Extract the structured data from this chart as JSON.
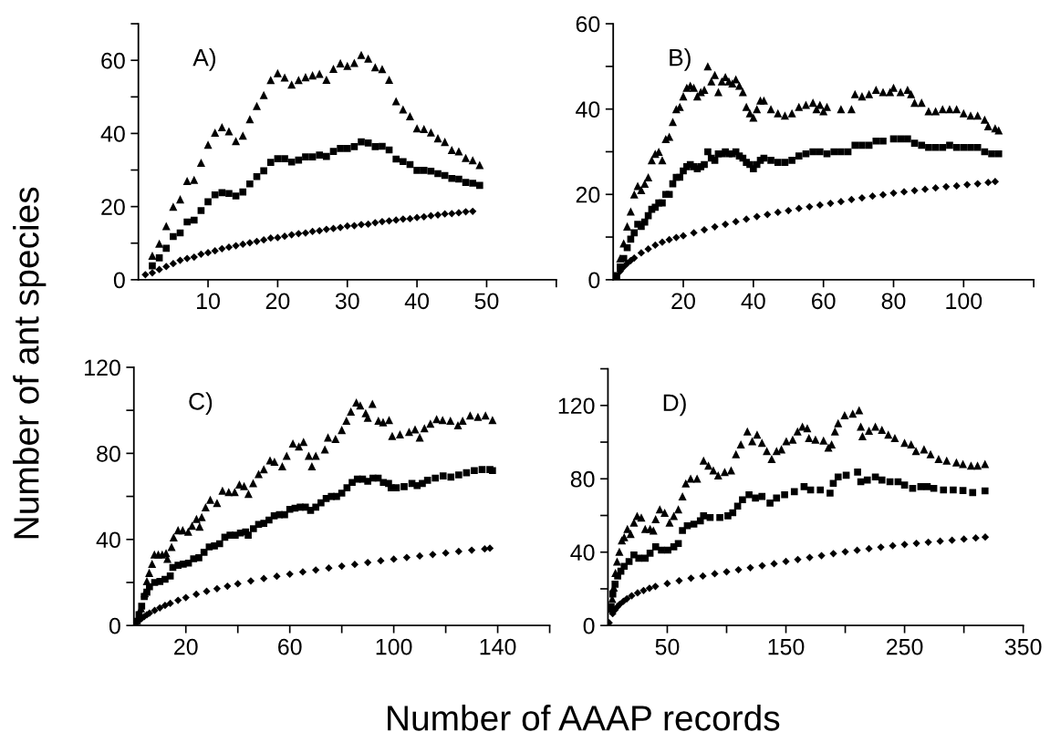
{
  "chart_data": [
    {
      "type": "scatter",
      "title": "A)",
      "ylabel": "Number of ant species",
      "xlim": [
        0,
        60
      ],
      "xticks": [
        10,
        20,
        30,
        40,
        50,
        {
          "value": 60,
          "label": null
        }
      ],
      "ylim": [
        0,
        70
      ],
      "yticks": [
        0,
        {
          "value": 10,
          "label": null
        },
        20,
        {
          "value": 30,
          "label": null
        },
        40,
        {
          "value": 50,
          "label": null
        },
        60,
        {
          "value": 70,
          "label": null
        }
      ],
      "series": [
        {
          "color": "#000000",
          "marker": "triangle",
          "x": [
            2,
            3,
            4,
            5,
            6,
            7,
            8,
            9,
            10,
            11,
            12,
            13,
            14,
            15,
            16,
            17,
            18,
            19,
            20,
            21,
            22,
            23,
            24,
            25,
            26,
            27,
            28,
            29,
            30,
            31,
            32,
            33,
            34,
            35,
            36,
            37,
            38,
            39,
            40,
            41,
            42,
            43,
            44,
            45,
            46,
            47,
            48,
            49
          ],
          "values": [
            6.6,
            9.9,
            14.7,
            20,
            22,
            27,
            27.3,
            32,
            36.9,
            40.2,
            41.7,
            40.6,
            37.9,
            39.4,
            43.9,
            47.5,
            50.5,
            54.6,
            56.5,
            55.3,
            53.4,
            54.6,
            55.4,
            55.9,
            56.3,
            54.7,
            57.7,
            59.2,
            58.5,
            59.3,
            61.5,
            60.5,
            58.1,
            57.6,
            54.7,
            48.8,
            46.6,
            44.7,
            41.4,
            41.2,
            40.3,
            38.7,
            37.7,
            35.5,
            35.1,
            33.3,
            32.7,
            31.4
          ]
        },
        {
          "color": "#000000",
          "marker": "square",
          "x": [
            2,
            3,
            4,
            5,
            6,
            7,
            8,
            9,
            10,
            11,
            12,
            13,
            14,
            15,
            16,
            17,
            18,
            19,
            20,
            21,
            22,
            23,
            24,
            25,
            26,
            27,
            28,
            29,
            30,
            31,
            32,
            33,
            34,
            35,
            36,
            37,
            38,
            39,
            40,
            41,
            42,
            43,
            44,
            45,
            46,
            47,
            48,
            49
          ],
          "values": [
            3.8,
            6,
            8.6,
            11.8,
            12.8,
            15.8,
            16.3,
            18.9,
            21.3,
            23.2,
            23.8,
            23.6,
            22.9,
            24,
            26.2,
            28.2,
            29.8,
            32.1,
            33.1,
            33.1,
            32.2,
            32.7,
            33.6,
            33.6,
            34.1,
            33.7,
            35.1,
            35.9,
            35.9,
            36.4,
            37.7,
            37.4,
            36.4,
            36.5,
            35.5,
            33,
            32.3,
            31.5,
            29.9,
            29.9,
            29.7,
            29,
            28.5,
            27.7,
            27.5,
            26.6,
            26.4,
            25.8
          ]
        },
        {
          "color": "#000000",
          "marker": "diamond",
          "x": [
            1,
            2,
            3,
            4,
            5,
            6,
            7,
            8,
            9,
            10,
            11,
            12,
            13,
            14,
            15,
            16,
            17,
            18,
            19,
            20,
            21,
            22,
            23,
            24,
            25,
            26,
            27,
            28,
            29,
            30,
            31,
            32,
            33,
            34,
            35,
            36,
            37,
            38,
            39,
            40,
            41,
            42,
            43,
            44,
            45,
            46,
            47,
            48
          ],
          "values": [
            1.4,
            1.9,
            2.8,
            3.6,
            4.4,
            5.3,
            5.8,
            6.2,
            7,
            7.4,
            7.9,
            8.5,
            8.9,
            9.3,
            9.7,
            10.1,
            10.5,
            10.9,
            11.4,
            11.5,
            11.9,
            12.3,
            12.6,
            12.8,
            13.2,
            13.4,
            13.8,
            14,
            14.3,
            14.7,
            14.8,
            15.1,
            15.2,
            15.6,
            15.9,
            16.1,
            16.3,
            16.6,
            16.7,
            17,
            17.2,
            17.5,
            17.7,
            18,
            18.1,
            18.3,
            18.6,
            18.7
          ]
        }
      ]
    },
    {
      "type": "scatter",
      "title": "B)",
      "xlim": [
        0,
        120
      ],
      "xticks": [
        20,
        40,
        60,
        80,
        100,
        {
          "value": 120,
          "label": null
        }
      ],
      "ylim": [
        0,
        60
      ],
      "yticks": [
        0,
        {
          "value": 10,
          "label": null
        },
        20,
        {
          "value": 30,
          "label": null
        },
        40,
        {
          "value": 50,
          "label": null
        },
        60
      ],
      "series": [
        {
          "color": "#000000",
          "marker": "triangle",
          "x": [
            2,
            3,
            4,
            5,
            6,
            7,
            8,
            9,
            10,
            11,
            12,
            13,
            14,
            15,
            16,
            17,
            18,
            19,
            20,
            21,
            22,
            23,
            24,
            25,
            26,
            27,
            28,
            29,
            30,
            31,
            32,
            33,
            34,
            35,
            36,
            37,
            38,
            39,
            40,
            41,
            42,
            43,
            45,
            47,
            49,
            51,
            53,
            55,
            57,
            58,
            59,
            60,
            61,
            65,
            68,
            69,
            71,
            73,
            75,
            77,
            79,
            80,
            82,
            84,
            85,
            86,
            88,
            90,
            92,
            94,
            96,
            98,
            100,
            102,
            104,
            106,
            107,
            109,
            110
          ],
          "values": [
            5,
            8.5,
            12.5,
            16,
            20,
            22,
            21,
            22.5,
            24,
            28,
            29.5,
            30,
            28,
            33,
            33.5,
            37,
            40,
            40.5,
            43,
            45,
            45.5,
            45,
            43,
            44,
            44.5,
            50,
            46.5,
            48,
            44,
            46.5,
            47.5,
            46.5,
            46,
            47,
            45.5,
            44,
            40.5,
            39,
            38,
            40,
            42,
            42,
            40,
            39,
            38.5,
            39,
            40.5,
            41,
            41.5,
            40,
            41,
            39.5,
            40.5,
            40,
            40,
            43.5,
            43,
            43.5,
            44.5,
            44,
            44,
            45,
            44,
            44.5,
            43.5,
            41.5,
            41.5,
            39.5,
            39.5,
            40,
            40,
            40,
            39,
            38.5,
            38.5,
            37.5,
            36,
            35.5,
            35
          ]
        },
        {
          "color": "#000000",
          "marker": "square",
          "x": [
            1,
            2,
            3,
            4,
            5,
            6,
            7,
            8,
            9,
            10,
            11,
            12,
            13,
            14,
            15,
            16,
            17,
            18,
            19,
            20,
            21,
            22,
            23,
            24,
            25,
            26,
            27,
            28,
            29,
            30,
            31,
            32,
            33,
            34,
            35,
            36,
            37,
            38,
            39,
            40,
            41,
            42,
            43,
            45,
            47,
            49,
            51,
            53,
            55,
            57,
            59,
            61,
            63,
            65,
            67,
            69,
            71,
            73,
            75,
            77,
            80,
            82,
            84,
            86,
            88,
            90,
            92,
            94,
            96,
            98,
            100,
            102,
            104,
            106,
            108,
            110
          ],
          "values": [
            1,
            3,
            5,
            7.5,
            9.5,
            11,
            13,
            12.5,
            13.5,
            15,
            16.5,
            17,
            18,
            18,
            20,
            20,
            22.5,
            24,
            24,
            25.5,
            26.5,
            27,
            26.5,
            26,
            26.5,
            27,
            30,
            28.5,
            28,
            29.5,
            29.5,
            30,
            29.5,
            29.5,
            30,
            29,
            28.5,
            27.5,
            27,
            26,
            27,
            28,
            28.5,
            28,
            27.5,
            27.5,
            28,
            29,
            29.5,
            30,
            30,
            29.5,
            30,
            30,
            30,
            31.5,
            31.5,
            31.5,
            32.5,
            32.5,
            33,
            33,
            33,
            32,
            31.5,
            31,
            31,
            31,
            31.5,
            31,
            31,
            31,
            31,
            30,
            29.5,
            29.5
          ]
        },
        {
          "color": "#000000",
          "marker": "diamond",
          "x": [
            2,
            3,
            4,
            5,
            6,
            8,
            10,
            12,
            14,
            16,
            18,
            20,
            23,
            26,
            29,
            32,
            35,
            38,
            41,
            44,
            47,
            50,
            53,
            56,
            59,
            62,
            65,
            68,
            71,
            74,
            77,
            80,
            83,
            86,
            89,
            92,
            95,
            98,
            101,
            104,
            107,
            109
          ],
          "values": [
            2,
            3,
            3.8,
            4.5,
            5.1,
            6.3,
            7.2,
            8.1,
            8.8,
            9.4,
            9.9,
            10.3,
            11,
            11.7,
            12.4,
            13,
            13.6,
            14.2,
            14.8,
            15.3,
            15.8,
            16.2,
            16.7,
            17.1,
            17.5,
            17.9,
            18.3,
            18.8,
            19.2,
            19.6,
            19.9,
            20.3,
            20.6,
            20.9,
            21.2,
            21.5,
            21.8,
            22,
            22.3,
            22.5,
            22.8,
            23
          ]
        }
      ]
    },
    {
      "type": "scatter",
      "title": "C)",
      "xlabel": "Number of AAAP records",
      "xlim": [
        0,
        160
      ],
      "xticks": [
        20,
        {
          "value": 40,
          "label": null
        },
        60,
        {
          "value": 80,
          "label": null
        },
        100,
        {
          "value": 120,
          "label": null
        },
        140,
        {
          "value": 160,
          "label": null
        }
      ],
      "ylim": [
        0,
        120
      ],
      "yticks": [
        0,
        {
          "value": 20,
          "label": null
        },
        40,
        {
          "value": 60,
          "label": null
        },
        80,
        {
          "value": 100,
          "label": null
        },
        120
      ],
      "series": [
        {
          "color": "#000000",
          "marker": "triangle",
          "x": [
            1.2,
            2.7,
            4.2,
            5,
            5.9,
            7,
            7.9,
            9.4,
            10.9,
            12.4,
            12.9,
            14.5,
            15.3,
            17,
            18.8,
            20.9,
            22.4,
            24.1,
            25.3,
            26.1,
            27.6,
            29.4,
            32,
            34.1,
            36.5,
            38.8,
            40.6,
            42.4,
            44.1,
            45.9,
            48,
            50,
            52.4,
            54.1,
            57.1,
            58.8,
            61.2,
            63.5,
            65.3,
            67.3,
            68.5,
            70,
            73.5,
            74.7,
            77.6,
            80,
            81.8,
            83.5,
            85.6,
            87.1,
            89.2,
            90,
            91.8,
            94.1,
            95.9,
            98.2,
            99.4,
            102.4,
            105.9,
            108.2,
            110,
            111.8,
            114.1,
            116.5,
            118.8,
            121.8,
            124.7,
            126.5,
            129.4,
            132.4,
            135.3,
            138
          ],
          "values": [
            2.5,
            8,
            15,
            20.6,
            24.5,
            28.7,
            33,
            33,
            33,
            33.7,
            31,
            36.5,
            41,
            44.3,
            44.3,
            43.6,
            46.4,
            49.5,
            46,
            50.4,
            54.9,
            58.4,
            57,
            62.7,
            62,
            62,
            65.5,
            64.8,
            61.2,
            66.2,
            70.4,
            72.6,
            76.8,
            76.1,
            74,
            78.9,
            84.6,
            83.2,
            85.3,
            78.9,
            74,
            78.9,
            81.8,
            87.4,
            86.7,
            90.9,
            95.2,
            99.4,
            103.7,
            102.3,
            98.7,
            96.6,
            103,
            95.2,
            94.5,
            95.5,
            88.1,
            88.8,
            90,
            91.2,
            87.4,
            91.7,
            93.8,
            95.9,
            95.5,
            95.2,
            93.1,
            95.2,
            97.6,
            97,
            97.6,
            95.5
          ]
        },
        {
          "color": "#000000",
          "marker": "square",
          "x": [
            1,
            2,
            3,
            4,
            5,
            6,
            8,
            10,
            12,
            14,
            15,
            17,
            19,
            21,
            23,
            25,
            27,
            29,
            31,
            33,
            35,
            37,
            39,
            41,
            43,
            44,
            46,
            48,
            50,
            52,
            54,
            56,
            58,
            60,
            62,
            64,
            66,
            68,
            70,
            72,
            74,
            76,
            78,
            80,
            82,
            84,
            86,
            88,
            90,
            92,
            94,
            96,
            98,
            99,
            101,
            104,
            107,
            109,
            111,
            113,
            116,
            119,
            122,
            125,
            128,
            131,
            134,
            137,
            138
          ],
          "values": [
            2,
            5,
            9,
            13.5,
            15.5,
            18,
            20,
            20.5,
            21.5,
            23,
            27,
            28,
            28.5,
            29,
            31,
            31.5,
            34,
            36.5,
            37,
            38,
            41,
            42,
            42,
            43,
            43.5,
            42,
            45,
            47,
            47.5,
            49,
            51,
            51.5,
            51.5,
            54,
            54.5,
            55,
            55,
            53.5,
            55,
            57,
            59,
            60,
            60,
            61.5,
            64,
            66.5,
            68,
            68,
            67,
            68.5,
            68.5,
            66.5,
            66,
            64,
            64,
            64.5,
            66,
            65,
            66,
            67.5,
            68.5,
            69.5,
            69,
            70,
            71,
            72,
            72.5,
            72.5,
            72
          ]
        },
        {
          "color": "#000000",
          "marker": "diamond",
          "x": [
            1,
            2,
            3,
            4,
            5,
            6,
            8,
            10,
            12,
            14,
            17,
            20,
            24,
            28,
            32,
            36,
            40,
            45,
            50,
            55,
            60,
            65,
            70,
            75,
            80,
            85,
            90,
            95,
            100,
            105,
            110,
            115,
            120,
            125,
            130,
            135,
            137
          ],
          "values": [
            1,
            2.3,
            3.3,
            4.2,
            5,
            5.7,
            7,
            8.2,
            9.3,
            10.3,
            11.7,
            13,
            14.5,
            15.9,
            17.1,
            18.3,
            19.4,
            20.7,
            21.8,
            22.9,
            23.9,
            24.9,
            25.8,
            26.7,
            27.6,
            28.4,
            29.3,
            30.1,
            30.8,
            31.6,
            32.3,
            33,
            33.7,
            34.4,
            35,
            35.6,
            35.9
          ]
        }
      ]
    },
    {
      "type": "scatter",
      "title": "D)",
      "xlim": [
        0,
        350
      ],
      "xticks": [
        50,
        {
          "value": 100,
          "label": null
        },
        150,
        {
          "value": 200,
          "label": null
        },
        250,
        {
          "value": 300,
          "label": null
        },
        350
      ],
      "ylim": [
        0,
        140
      ],
      "yticks": [
        0,
        {
          "value": 20,
          "label": null
        },
        40,
        {
          "value": 60,
          "label": null
        },
        80,
        {
          "value": 100,
          "label": null
        },
        120,
        {
          "value": 140,
          "label": null
        }
      ],
      "series": [
        {
          "color": "#000000",
          "marker": "triangle",
          "x": [
            1.9,
            3.6,
            4.9,
            6.3,
            7.7,
            9.6,
            11.7,
            13.7,
            16.4,
            19.1,
            21.9,
            24.6,
            28.1,
            31.4,
            35.5,
            38.3,
            40.2,
            43.7,
            47.8,
            51.9,
            55.5,
            59.3,
            62.8,
            65.6,
            69.7,
            75.1,
            80.6,
            84.7,
            88.8,
            92.9,
            98.4,
            103.8,
            107.9,
            112,
            117.5,
            121.6,
            125.7,
            129.8,
            133.9,
            138,
            142.1,
            146.2,
            150.3,
            155.7,
            159.8,
            163.9,
            168,
            169.4,
            174.9,
            181.7,
            185.8,
            188.5,
            191.3,
            194,
            199.5,
            206.3,
            211.7,
            213.1,
            214.5,
            220,
            225.4,
            230.9,
            236.3,
            241.8,
            250,
            255.5,
            259.6,
            266.4,
            271.9,
            278.7,
            285.5,
            293.7,
            299.2,
            306,
            311.5,
            317.8
          ],
          "values": [
            9.2,
            14.5,
            20.7,
            28.7,
            34.9,
            40.2,
            46.5,
            48.2,
            52.7,
            50,
            56.2,
            59.8,
            58.9,
            52.7,
            52.7,
            51.8,
            58,
            63.3,
            61.5,
            56.2,
            59.8,
            63.3,
            70.4,
            77.5,
            80.1,
            80.1,
            89.9,
            87.2,
            84.6,
            81.9,
            83.7,
            84.6,
            93.4,
            98.8,
            105.9,
            100.5,
            104.1,
            99.6,
            95.2,
            90.8,
            95.2,
            96.1,
            100.5,
            101.4,
            105.9,
            108.5,
            107.6,
            102.3,
            101.4,
            100.9,
            97,
            98.8,
            105.9,
            110.3,
            114.7,
            115.6,
            117.4,
            108.5,
            103.2,
            106.2,
            108.5,
            106.7,
            104.1,
            102.3,
            99.6,
            98.8,
            95.2,
            96.1,
            93.4,
            90.8,
            89.9,
            89,
            88.1,
            87.2,
            87.2,
            88.1
          ]
        },
        {
          "color": "#000000",
          "marker": "square",
          "x": [
            2.7,
            4.1,
            6,
            8.2,
            10.9,
            13.7,
            17.8,
            21.9,
            26,
            31.4,
            35.5,
            40.2,
            45.1,
            50.5,
            55.5,
            59.3,
            62.8,
            66.9,
            72.4,
            77.9,
            80.6,
            86.1,
            94.3,
            101.1,
            105.2,
            109.3,
            113.4,
            118.9,
            124.3,
            129.8,
            136.6,
            142.1,
            148.9,
            157.1,
            165.3,
            170.8,
            179,
            187.2,
            189.9,
            194,
            200.8,
            210.4,
            213.1,
            218.6,
            225.4,
            230.9,
            237.7,
            244.5,
            250,
            256.8,
            263.7,
            269.1,
            274.6,
            282.8,
            291,
            299.2,
            307.4,
            317.8
          ],
          "values": [
            10.1,
            17.2,
            22.5,
            27,
            29.6,
            32.3,
            34.9,
            38.5,
            36.7,
            36.7,
            39.4,
            42.9,
            41.1,
            41.1,
            42.9,
            44.7,
            51.8,
            54.4,
            55.3,
            57.1,
            59.8,
            58.9,
            58.9,
            59.8,
            61.5,
            65.1,
            68.6,
            71.3,
            69.5,
            70.4,
            66.8,
            69.5,
            71.3,
            73,
            75.7,
            73.9,
            73.9,
            72.2,
            77.5,
            81,
            81.9,
            83.7,
            78.4,
            79.3,
            81,
            79.3,
            78.4,
            78.4,
            76.6,
            74.8,
            75.7,
            75.7,
            74.8,
            73.9,
            73.9,
            73.6,
            72.5,
            73.4
          ]
        },
        {
          "color": "#000000",
          "marker": "diamond",
          "x": [
            1,
            4,
            6,
            8,
            10,
            13,
            16,
            20,
            25,
            30,
            35,
            40,
            50,
            60,
            70,
            80,
            90,
            100,
            110,
            120,
            130,
            140,
            150,
            160,
            170,
            180,
            190,
            200,
            210,
            220,
            230,
            240,
            250,
            260,
            270,
            280,
            290,
            300,
            310,
            318
          ],
          "values": [
            1.5,
            6.5,
            8.5,
            10.2,
            11.6,
            13.2,
            14.6,
            16.2,
            17.8,
            19.1,
            20.3,
            21.3,
            22.9,
            24.4,
            25.8,
            27,
            28.2,
            29.3,
            30.4,
            31.5,
            32.6,
            33.7,
            34.9,
            36,
            37.1,
            38.1,
            39.2,
            40.2,
            41,
            41.9,
            42.7,
            43.5,
            44.2,
            44.8,
            45.4,
            46,
            46.5,
            47.1,
            47.7,
            48.2
          ]
        }
      ]
    }
  ]
}
